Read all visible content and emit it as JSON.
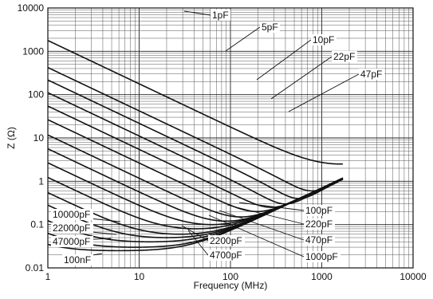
{
  "chart_data": {
    "type": "line",
    "title": "",
    "xlabel": "Frequency (MHz)",
    "ylabel": "Z (Ω)",
    "xscale": "log",
    "yscale": "log",
    "xlim": [
      1,
      10000
    ],
    "ylim": [
      0.01,
      10000
    ],
    "grid": true,
    "x_tick_labels": [
      "1",
      "10",
      "100",
      "1000",
      "10000"
    ],
    "y_tick_labels": [
      "0.01",
      "0.1",
      "1",
      "10",
      "100",
      "1000",
      "10000"
    ],
    "series": [
      {
        "name": "100nF",
        "resonance_mhz": 6.0,
        "min_z_ohm": 0.025
      },
      {
        "name": "47000pF",
        "resonance_mhz": 9.0,
        "min_z_ohm": 0.03
      },
      {
        "name": "22000pF",
        "resonance_mhz": 13.0,
        "min_z_ohm": 0.04
      },
      {
        "name": "10000pF",
        "resonance_mhz": 20.0,
        "min_z_ohm": 0.05
      },
      {
        "name": "4700pF",
        "resonance_mhz": 28.0,
        "min_z_ohm": 0.06
      },
      {
        "name": "2200pF",
        "resonance_mhz": 42.0,
        "min_z_ohm": 0.08
      },
      {
        "name": "1000pF",
        "resonance_mhz": 62.0,
        "min_z_ohm": 0.1
      },
      {
        "name": "470pF",
        "resonance_mhz": 90.0,
        "min_z_ohm": 0.12
      },
      {
        "name": "220pF",
        "resonance_mhz": 130.0,
        "min_z_ohm": 0.15
      },
      {
        "name": "100pF",
        "resonance_mhz": 195.0,
        "min_z_ohm": 0.2
      },
      {
        "name": "47pF",
        "resonance_mhz": 280.0,
        "min_z_ohm": 0.25
      },
      {
        "name": "22pF",
        "resonance_mhz": 400.0,
        "min_z_ohm": 0.3
      },
      {
        "name": "10pF",
        "resonance_mhz": 560.0,
        "min_z_ohm": 0.4
      },
      {
        "name": "5pF",
        "resonance_mhz": 780.0,
        "min_z_ohm": 0.6
      },
      {
        "name": "1pF",
        "resonance_mhz": 1600.0,
        "min_z_ohm": 2.5
      }
    ]
  },
  "annotations_right": [
    {
      "label": "1pF"
    },
    {
      "label": "5pF"
    },
    {
      "label": "10pF"
    },
    {
      "label": "22pF"
    },
    {
      "label": "47pF"
    }
  ],
  "annotations_left": [
    {
      "label": "10000pF"
    },
    {
      "label": "22000pF"
    },
    {
      "label": "47000pF"
    },
    {
      "label": "100nF"
    }
  ],
  "annotations_center": [
    {
      "label": "2200pF"
    },
    {
      "label": "4700pF"
    }
  ],
  "annotations_lower_right": [
    {
      "label": "100pF"
    },
    {
      "label": "220pF"
    },
    {
      "label": "470pF"
    },
    {
      "label": "1000pF"
    }
  ]
}
